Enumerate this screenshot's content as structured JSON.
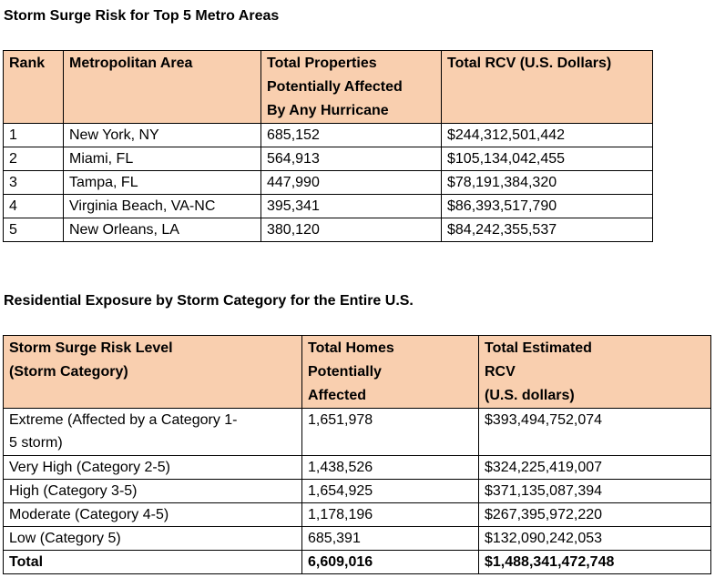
{
  "table1": {
    "title": "Storm Surge Risk for Top 5 Metro Areas",
    "headers": [
      "Rank",
      "Metropolitan Area",
      "Total Properties\nPotentially Affected\nBy Any Hurricane",
      "Total RCV (U.S. Dollars)"
    ],
    "rows": [
      [
        "1",
        "New York, NY",
        "685,152",
        "$244,312,501,442"
      ],
      [
        "2",
        "Miami, FL",
        "564,913",
        "$105,134,042,455"
      ],
      [
        "3",
        "Tampa, FL",
        "447,990",
        "$78,191,384,320"
      ],
      [
        "4",
        "Virginia Beach, VA-NC",
        "395,341",
        "$86,393,517,790"
      ],
      [
        "5",
        "New Orleans, LA",
        "380,120",
        "$84,242,355,537"
      ]
    ]
  },
  "table2": {
    "title": "Residential Exposure by Storm Category for the Entire U.S.",
    "headers": [
      "Storm Surge Risk Level\n(Storm Category)",
      "Total Homes\nPotentially\nAffected",
      "Total Estimated\nRCV\n(U.S. dollars)"
    ],
    "rows": [
      [
        "Extreme (Affected by a Category 1-\n5 storm)",
        "1,651,978",
        "$393,494,752,074"
      ],
      [
        "Very High (Category 2-5)",
        "1,438,526",
        "$324,225,419,007"
      ],
      [
        "High (Category 3-5)",
        "1,654,925",
        "$371,135,087,394"
      ],
      [
        "Moderate (Category 4-5)",
        "1,178,196",
        "$267,395,972,220"
      ],
      [
        "Low (Category 5)",
        "685,391",
        "$132,090,242,053"
      ]
    ],
    "total": [
      "Total",
      "6,609,016",
      "$1,488,341,472,748"
    ]
  }
}
